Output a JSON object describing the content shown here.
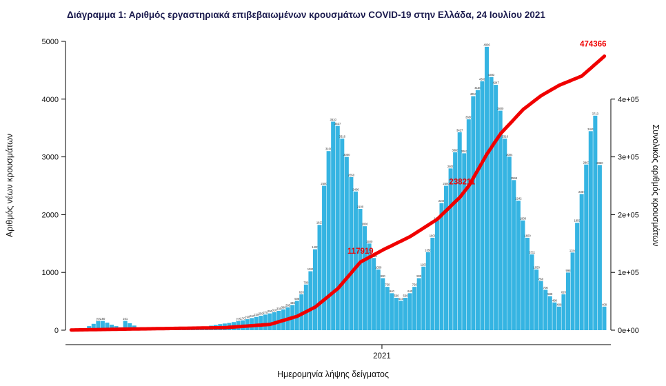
{
  "title": "Διάγραμμα 1: Αριθμός εργαστηριακά επιβεβαιωμένων κρουσμάτων COVID-19 στην Ελλάδα, 24 Ιουλίου 2021",
  "colors": {
    "bar": "#35b4e2",
    "line": "#f00000",
    "title": "#1a1a4d",
    "axis": "#000000",
    "bar_label": "#333333",
    "annotation": "#f00000"
  },
  "chart_data": {
    "type": "bar",
    "title": "Διάγραμμα 1: Αριθμός εργαστηριακά επιβεβαιωμένων κρουσμάτων COVID-19 στην Ελλάδα, 24 Ιουλίου 2021",
    "xlabel": "Ημερομηνία λήψης δείγματος",
    "ylabel_left": "Αριθμός νέων κρουσμάτων",
    "ylabel_right": "Συνολικός αριθμός κρουσμάτων",
    "legend_position": "none",
    "grid": false,
    "x_ticks": [
      {
        "label": "2021",
        "frac": 0.582
      }
    ],
    "y_left_ticks": [
      0,
      1000,
      2000,
      3000,
      4000,
      5000
    ],
    "y_left_max": 5000,
    "y_right_ticks": [
      {
        "label": "0e+00",
        "value": 0
      },
      {
        "label": "1e+05",
        "value": 100000
      },
      {
        "label": "2e+05",
        "value": 200000
      },
      {
        "label": "3e+05",
        "value": 300000
      },
      {
        "label": "4e+05",
        "value": 400000
      }
    ],
    "y_right_max": 500000,
    "series": [
      {
        "name": "daily_new_cases",
        "type": "bar",
        "values": [
          3,
          8,
          15,
          35,
          70,
          110,
          156,
          160,
          130,
          95,
          70,
          50,
          161,
          120,
          80,
          50,
          30,
          20,
          14,
          10,
          10,
          12,
          15,
          18,
          22,
          28,
          33,
          40,
          48,
          55,
          65,
          78,
          90,
          105,
          115,
          125,
          140,
          155,
          170,
          190,
          210,
          230,
          250,
          270,
          290,
          310,
          335,
          360,
          395,
          436,
          508,
          620,
          790,
          1020,
          1400,
          1823,
          2500,
          3100,
          3610,
          3537,
          3316,
          3000,
          2650,
          2400,
          2100,
          1800,
          1500,
          1250,
          1050,
          900,
          750,
          640,
          560,
          510,
          560,
          640,
          750,
          900,
          1100,
          1350,
          1600,
          1900,
          2200,
          2500,
          2800,
          3080,
          3427,
          3062,
          3650,
          4051,
          4158,
          4309,
          4906,
          4383,
          4247,
          3800,
          3316,
          3004,
          2598,
          2242,
          1900,
          1600,
          1311,
          1050,
          850,
          700,
          588,
          480,
          408,
          620,
          998,
          1344,
          1859,
          2357,
          2867,
          3445,
          3713,
          2860,
          408
        ]
      },
      {
        "name": "cumulative_cases",
        "type": "line",
        "final_total": 474366,
        "keypoints": [
          {
            "i": 0,
            "v": 300
          },
          {
            "i": 12,
            "v": 1800
          },
          {
            "i": 24,
            "v": 3200
          },
          {
            "i": 34,
            "v": 4400
          },
          {
            "i": 44,
            "v": 10000
          },
          {
            "i": 50,
            "v": 24000
          },
          {
            "i": 54,
            "v": 40000
          },
          {
            "i": 59,
            "v": 72000
          },
          {
            "i": 64,
            "v": 117919
          },
          {
            "i": 69,
            "v": 139000
          },
          {
            "i": 75,
            "v": 162000
          },
          {
            "i": 81,
            "v": 192000
          },
          {
            "i": 86,
            "v": 230000
          },
          {
            "i": 88,
            "v": 250000
          },
          {
            "i": 92,
            "v": 305000
          },
          {
            "i": 95,
            "v": 340000
          },
          {
            "i": 100,
            "v": 382000
          },
          {
            "i": 104,
            "v": 406000
          },
          {
            "i": 108,
            "v": 424000
          },
          {
            "i": 113,
            "v": 440000
          },
          {
            "i": 118,
            "v": 474366
          }
        ]
      }
    ],
    "annotations": [
      {
        "text": "117919",
        "i": 64,
        "value": 117919,
        "dy": -12
      },
      {
        "text": "238211",
        "i": 86.5,
        "value": 238211,
        "dy": -12
      },
      {
        "text": "474366",
        "i": 115.5,
        "value": 474366,
        "dy": -14
      }
    ]
  }
}
